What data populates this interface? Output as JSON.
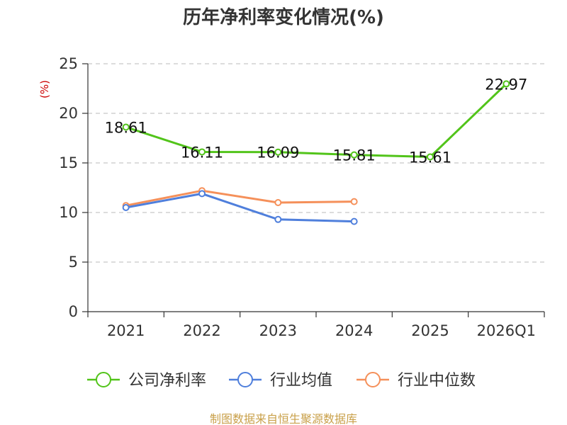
{
  "chart_data": {
    "type": "line",
    "title": "历年净利率变化情况(%)",
    "ylabel": "(%)",
    "xlabel": "",
    "categories": [
      "2021",
      "2022",
      "2023",
      "2024",
      "2025",
      "2026Q1"
    ],
    "ylim": [
      0,
      25
    ],
    "yticks": [
      0,
      5,
      10,
      15,
      20,
      25
    ],
    "grid": true,
    "legend_position": "bottom",
    "series": [
      {
        "name": "公司净利率",
        "color": "#52c41a",
        "values": [
          18.61,
          16.11,
          16.09,
          15.81,
          15.61,
          22.97
        ],
        "labels": [
          "18.61",
          "16.11",
          "16.09",
          "15.81",
          "15.61",
          "22.97"
        ]
      },
      {
        "name": "行业均值",
        "color": "#4f7fdc",
        "values": [
          10.5,
          11.9,
          9.3,
          9.1,
          null,
          null
        ]
      },
      {
        "name": "行业中位数",
        "color": "#f5905a",
        "values": [
          10.7,
          12.2,
          11.0,
          11.1,
          null,
          null
        ]
      }
    ]
  },
  "source": "制图数据来自恒生聚源数据库"
}
